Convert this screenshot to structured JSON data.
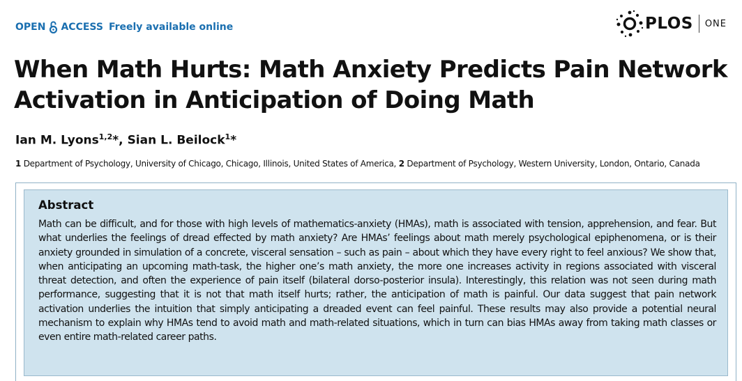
{
  "header": {
    "open_left": "OPEN",
    "open_right": "ACCESS",
    "freely": "Freely available online",
    "brand_color": "#1a6fb0"
  },
  "logo": {
    "brand": "PLOS",
    "journal": "ONE"
  },
  "article": {
    "title": "When Math Hurts: Math Anxiety Predicts Pain Network Activation in Anticipation of Doing Math",
    "authors": [
      {
        "name": "Ian M. Lyons",
        "sup": "1,2",
        "mark": "*"
      },
      {
        "name": "Sian L. Beilock",
        "sup": "1",
        "mark": "*"
      }
    ],
    "author_separator": ", ",
    "affiliations": [
      {
        "num": "1",
        "text": "Department of Psychology, University of Chicago, Chicago, Illinois, United States of America,"
      },
      {
        "num": "2",
        "text": "Department of Psychology, Western University, London, Ontario, Canada"
      }
    ]
  },
  "abstract": {
    "heading": "Abstract",
    "text": "Math can be difficult, and for those with high levels of mathematics-anxiety (HMAs), math is associated with tension, apprehension, and fear. But what underlies the feelings of dread effected by math anxiety? Are HMAs’ feelings about math merely psychological epiphenomena, or is their anxiety grounded in simulation of a concrete, visceral sensation – such as pain – about which they have every right to feel anxious? We show that, when anticipating an upcoming math-task, the higher one’s math anxiety, the more one increases activity in regions associated with visceral threat detection, and often the experience of pain itself (bilateral dorso-posterior insula). Interestingly, this relation was not seen during math performance, suggesting that it is not that math itself hurts; rather, the anticipation of math is painful. Our data suggest that pain network activation underlies the intuition that simply anticipating a dreaded event can feel painful. These results may also provide a potential neural mechanism to explain why HMAs tend to avoid math and math-related situations, which in turn can bias HMAs away from taking math classes or even entire math-related career paths.",
    "background_color": "#cfe3ee"
  }
}
